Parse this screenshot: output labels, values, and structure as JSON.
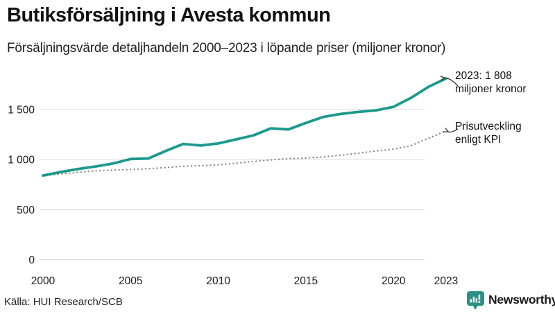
{
  "header": {
    "title": "Butiksförsäljning i Avesta kommun",
    "subtitle": "Försäljningsvärde detaljhandeln 2000–2023 i löpande priser (miljoner kronor)"
  },
  "annotations": {
    "sales": {
      "line1": "2023: 1 808",
      "line2": "miljoner kronor"
    },
    "kpi": {
      "line1": "Prisutveckling",
      "line2": "enligt KPI"
    }
  },
  "footer": {
    "source": "Källa: HUI Research/SCB",
    "logo_text": "Newsworthy"
  },
  "colors": {
    "sales_teal": "#1b9a8c",
    "kpi_gray": "#848484",
    "gridline": "#dcdcdc",
    "tick_text": "#1a1a1a",
    "logo_teal": "#2b9187",
    "arrow": "#2b2b2b"
  },
  "chart_data": {
    "type": "line",
    "title": "Butiksförsäljning i Avesta kommun",
    "subtitle": "Försäljningsvärde detaljhandeln 2000–2023 i löpande priser (miljoner kronor)",
    "xlabel": "",
    "ylabel": "miljoner kronor",
    "x": [
      2000,
      2001,
      2002,
      2003,
      2004,
      2005,
      2006,
      2007,
      2008,
      2009,
      2010,
      2011,
      2012,
      2013,
      2014,
      2015,
      2016,
      2017,
      2018,
      2019,
      2020,
      2021,
      2022,
      2023
    ],
    "series": [
      {
        "name": "Försäljningsvärde detaljhandeln (löpande priser)",
        "style": "solid",
        "values": [
          840,
          875,
          905,
          930,
          960,
          1005,
          1010,
          1085,
          1155,
          1140,
          1160,
          1200,
          1240,
          1310,
          1300,
          1365,
          1425,
          1455,
          1475,
          1490,
          1525,
          1615,
          1725,
          1808
        ]
      },
      {
        "name": "Prisutveckling enligt KPI",
        "style": "dotted",
        "values": [
          835,
          855,
          872,
          886,
          894,
          900,
          908,
          918,
          932,
          938,
          946,
          962,
          980,
          995,
          1008,
          1014,
          1025,
          1043,
          1062,
          1085,
          1103,
          1138,
          1212,
          1285
        ]
      }
    ],
    "highlight_point": {
      "year": 2023,
      "value": 1808,
      "label": "2023: 1 808 miljoner kronor"
    },
    "xticks": [
      2000,
      2005,
      2010,
      2015,
      2020,
      2023
    ],
    "xtick_labels": [
      "2000",
      "2005",
      "2010",
      "2015",
      "2020",
      "2023"
    ],
    "yticks": [
      0,
      500,
      1000,
      1500
    ],
    "ytick_labels": [
      "0",
      "500",
      "1 000",
      "1 500"
    ],
    "ylim": [
      0,
      1900
    ],
    "xlim": [
      2000,
      2023
    ],
    "grid": "horizontal",
    "legend_position": "inline-annotations"
  }
}
